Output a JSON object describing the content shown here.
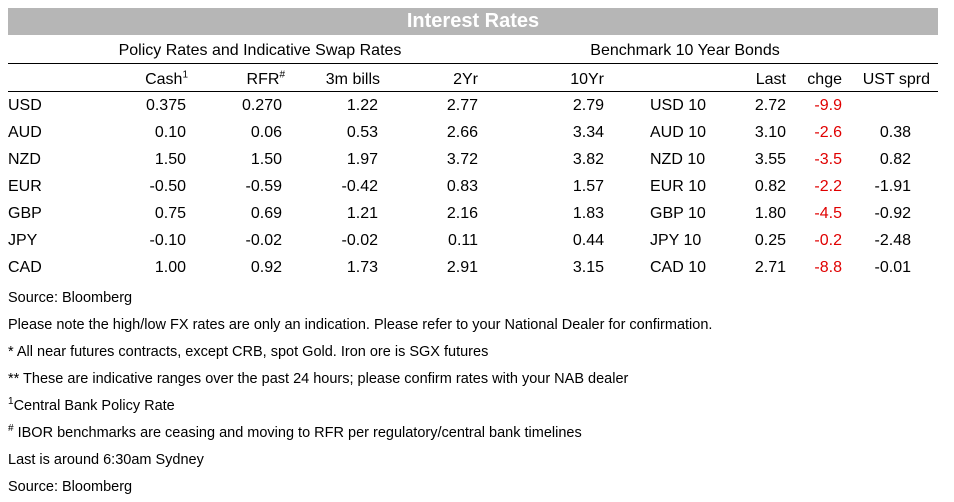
{
  "title": "Interest Rates",
  "group_left": "Policy Rates and Indicative Swap Rates",
  "group_right": "Benchmark 10 Year Bonds",
  "headers": {
    "cash": "Cash",
    "cash_sup": "1",
    "rfr": "RFR",
    "rfr_sup": "#",
    "bills": "3m bills",
    "yr2": "2Yr",
    "yr10": "10Yr",
    "last": "Last",
    "chge": "chge",
    "sprd": "UST sprd"
  },
  "rows": [
    {
      "ccy": "USD",
      "cash": "0.375",
      "rfr": "0.270",
      "bills": "1.22",
      "yr2": "2.77",
      "yr10": "2.79",
      "bond": "USD 10",
      "last": "2.72",
      "chge": "-9.9",
      "sprd": ""
    },
    {
      "ccy": "AUD",
      "cash": "0.10",
      "rfr": "0.06",
      "bills": "0.53",
      "yr2": "2.66",
      "yr10": "3.34",
      "bond": "AUD 10",
      "last": "3.10",
      "chge": "-2.6",
      "sprd": "0.38"
    },
    {
      "ccy": "NZD",
      "cash": "1.50",
      "rfr": "1.50",
      "bills": "1.97",
      "yr2": "3.72",
      "yr10": "3.82",
      "bond": "NZD 10",
      "last": "3.55",
      "chge": "-3.5",
      "sprd": "0.82"
    },
    {
      "ccy": "EUR",
      "cash": "-0.50",
      "rfr": "-0.59",
      "bills": "-0.42",
      "yr2": "0.83",
      "yr10": "1.57",
      "bond": "EUR 10",
      "last": "0.82",
      "chge": "-2.2",
      "sprd": "-1.91"
    },
    {
      "ccy": "GBP",
      "cash": "0.75",
      "rfr": "0.69",
      "bills": "1.21",
      "yr2": "2.16",
      "yr10": "1.83",
      "bond": "GBP 10",
      "last": "1.80",
      "chge": "-4.5",
      "sprd": "-0.92"
    },
    {
      "ccy": "JPY",
      "cash": "-0.10",
      "rfr": "-0.02",
      "bills": "-0.02",
      "yr2": "0.11",
      "yr10": "0.44",
      "bond": "JPY 10",
      "last": "0.25",
      "chge": "-0.2",
      "sprd": "-2.48"
    },
    {
      "ccy": "CAD",
      "cash": "1.00",
      "rfr": "0.92",
      "bills": "1.73",
      "yr2": "2.91",
      "yr10": "3.15",
      "bond": "CAD 10",
      "last": "2.71",
      "chge": "-8.8",
      "sprd": "-0.01"
    }
  ],
  "notes": [
    {
      "sup": "",
      "text": "Source: Bloomberg"
    },
    {
      "sup": "",
      "text": "Please note the high/low FX rates are only an indication. Please refer to your National Dealer for confirmation."
    },
    {
      "sup": "",
      "text": "* All near futures contracts, except CRB, spot Gold.  Iron ore is SGX futures"
    },
    {
      "sup": "",
      "text": "** These are indicative ranges over the past 24 hours; please confirm rates with your NAB dealer"
    },
    {
      "sup": "1",
      "text": "Central Bank Policy Rate"
    },
    {
      "sup": "#",
      "text": " IBOR benchmarks are ceasing and moving to RFR per regulatory/central bank timelines"
    },
    {
      "sup": "",
      "text": "Last is around 6:30am Sydney"
    },
    {
      "sup": "",
      "text": "Source: Bloomberg"
    }
  ],
  "colors": {
    "banner": "#b6b6b6",
    "negative_change": "#e00000"
  }
}
